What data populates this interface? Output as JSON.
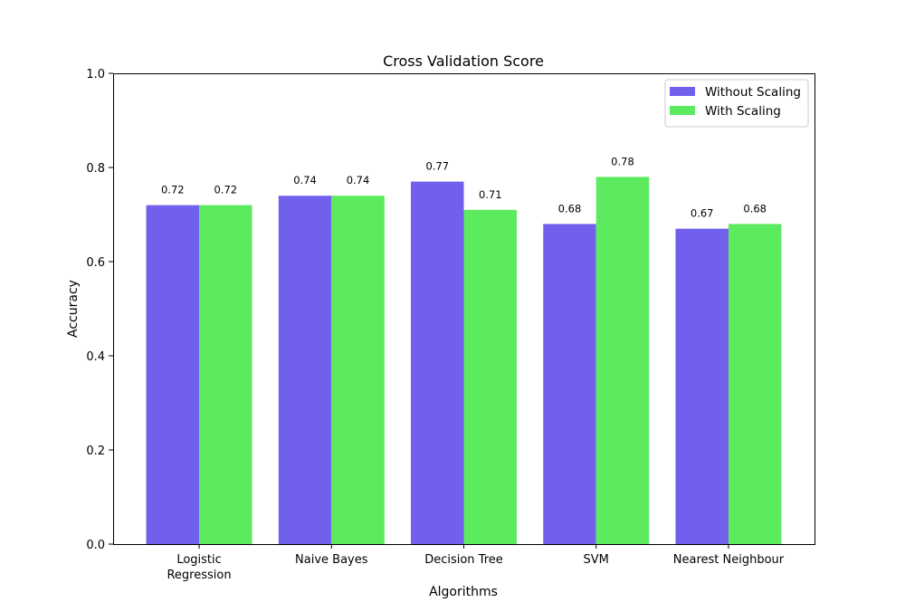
{
  "chart_data": {
    "type": "bar",
    "title": "Cross Validation Score",
    "xlabel": "Algorithms",
    "ylabel": "Accuracy",
    "ylim": [
      0,
      1.0
    ],
    "yticks": [
      "0.0",
      "0.2",
      "0.4",
      "0.6",
      "0.8",
      "1.0"
    ],
    "categories": [
      [
        "Logistic",
        "Regression"
      ],
      [
        "Naive Bayes"
      ],
      [
        "Decision Tree"
      ],
      [
        "SVM"
      ],
      [
        "Nearest Neighbour"
      ]
    ],
    "series": [
      {
        "name": "Without Scaling",
        "color": "#7060eb",
        "values": [
          0.72,
          0.74,
          0.77,
          0.68,
          0.67
        ],
        "labels": [
          "0.72",
          "0.74",
          "0.77",
          "0.68",
          "0.67"
        ]
      },
      {
        "name": "With Scaling",
        "color": "#5ceb5e",
        "values": [
          0.72,
          0.74,
          0.71,
          0.78,
          0.68
        ],
        "labels": [
          "0.72",
          "0.74",
          "0.71",
          "0.78",
          "0.68"
        ]
      }
    ],
    "legend_position": "upper right",
    "grid": false
  }
}
